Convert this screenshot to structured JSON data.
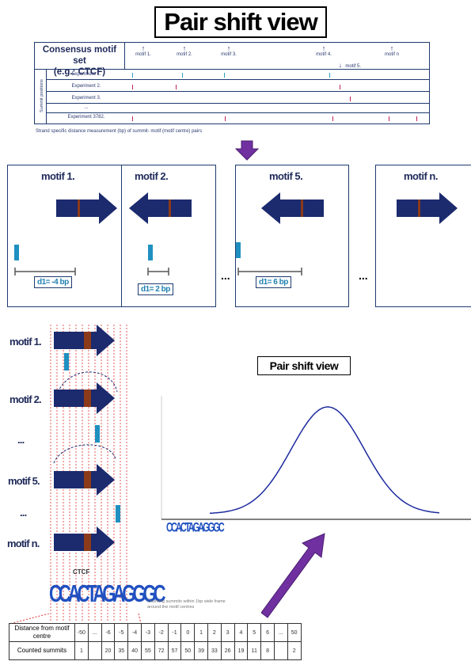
{
  "title": "Pair shift view",
  "table": {
    "consensus_label": "Consensus motif set\n(e.g.: CTCF)",
    "side_label": "Summit positions",
    "motifs": [
      "motif 1.",
      "motif 2.",
      "motif 3.",
      "motif 4.",
      "motif 5.",
      "motif n"
    ],
    "experiments": [
      "Experiment 1.",
      "Experiment 2.",
      "Experiment 3.",
      "...",
      "Experiment 3782."
    ],
    "caption": "Strand specific distance measurement (bp) of summit- motif (motif centre) pairs"
  },
  "panels": [
    {
      "title": "motif 1.",
      "distance": "d1= -4 bp"
    },
    {
      "title": "motif 2.",
      "distance": "d1= 2 bp"
    },
    {
      "title": "motif 5.",
      "distance": "d1= 6 bp"
    },
    {
      "title": "motif n."
    }
  ],
  "ellipsis": "...",
  "left_labels": [
    "motif 1.",
    "motif 2.",
    "...",
    "motif 5.",
    "...",
    "motif n."
  ],
  "logo_text": "CCACTAGAGGGC",
  "logo_top": "CTCF",
  "chart_title": "Pair shift view",
  "note": "Counting summits within 1bp wide frame around the motif centres",
  "dist_table": {
    "row1_label": "Distance from motif centre",
    "row2_label": "Counted summits",
    "distances": [
      "-50",
      "...",
      "-6",
      "-5",
      "-4",
      "-3",
      "-2",
      "-1",
      "0",
      "1",
      "2",
      "3",
      "4",
      "5",
      "6",
      "...",
      "50"
    ],
    "counts": [
      "1",
      "",
      "20",
      "35",
      "40",
      "55",
      "72",
      "57",
      "50",
      "39",
      "33",
      "26",
      "19",
      "11",
      "8",
      "",
      "2"
    ]
  },
  "colors": {
    "arrow": "#1c2a6e",
    "accent": "#7030a0",
    "summit": "#1f90c0",
    "stripe": "#8b3a1a"
  }
}
